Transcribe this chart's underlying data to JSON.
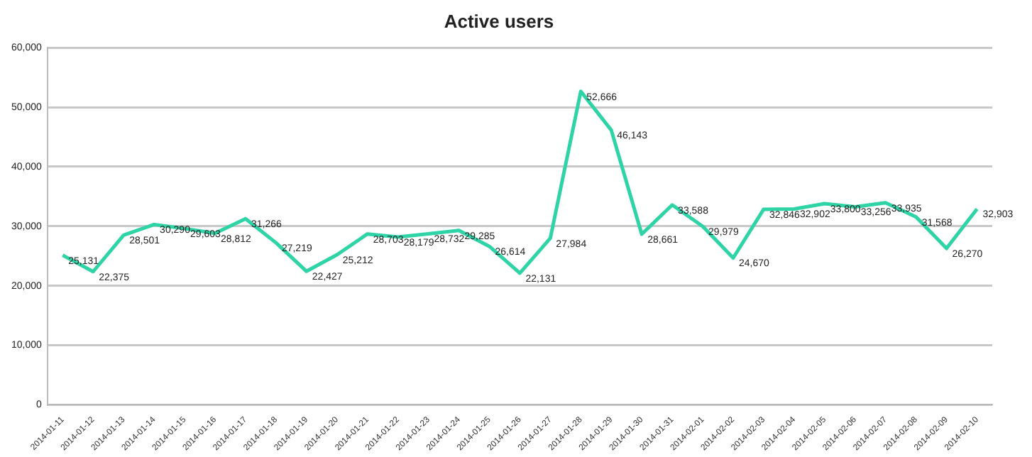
{
  "chart_data": {
    "type": "line",
    "title": "Active users",
    "categories": [
      "2014-01-11",
      "2014-01-12",
      "2014-01-13",
      "2014-01-14",
      "2014-01-15",
      "2014-01-16",
      "2014-01-17",
      "2014-01-18",
      "2014-01-19",
      "2014-01-20",
      "2014-01-21",
      "2014-01-22",
      "2014-01-23",
      "2014-01-24",
      "2014-01-25",
      "2014-01-26",
      "2014-01-27",
      "2014-01-28",
      "2014-01-29",
      "2014-01-30",
      "2014-01-31",
      "2014-02-01",
      "2014-02-02",
      "2014-02-03",
      "2014-02-04",
      "2014-02-05",
      "2014-02-06",
      "2014-02-07",
      "2014-02-08",
      "2014-02-09",
      "2014-02-10"
    ],
    "values": [
      25131,
      22375,
      28501,
      30290,
      29603,
      28812,
      31266,
      27219,
      22427,
      25212,
      28703,
      28179,
      28732,
      29285,
      26614,
      22131,
      27984,
      52666,
      46143,
      28661,
      33588,
      29979,
      24670,
      32846,
      32902,
      33800,
      33256,
      33935,
      31568,
      26270,
      32903
    ],
    "color": "#2ed3a6",
    "ylim": [
      0,
      60000
    ],
    "yticks": [
      {
        "value": 0,
        "label": "0"
      },
      {
        "value": 10000,
        "label": "10,000"
      },
      {
        "value": 20000,
        "label": "20,000"
      },
      {
        "value": 30000,
        "label": "30,000"
      },
      {
        "value": 40000,
        "label": "40,000"
      },
      {
        "value": 50000,
        "label": "50,000"
      },
      {
        "value": 60000,
        "label": "60,000"
      }
    ],
    "value_labels": [
      "25,131",
      "22,375",
      "28,501",
      "30,290",
      "29,603",
      "28,812",
      "31,266",
      "27,219",
      "22,427",
      "25,212",
      "28,703",
      "28,179",
      "28,732",
      "29,285",
      "26,614",
      "22,131",
      "27,984",
      "52,666",
      "46,143",
      "28,661",
      "33,588",
      "29,979",
      "24,670",
      "32,846",
      "32,902",
      "33,800",
      "33,256",
      "33,935",
      "31,568",
      "26,270",
      "32,903"
    ],
    "grid": "y",
    "marker": "none",
    "line_style": "solid"
  }
}
